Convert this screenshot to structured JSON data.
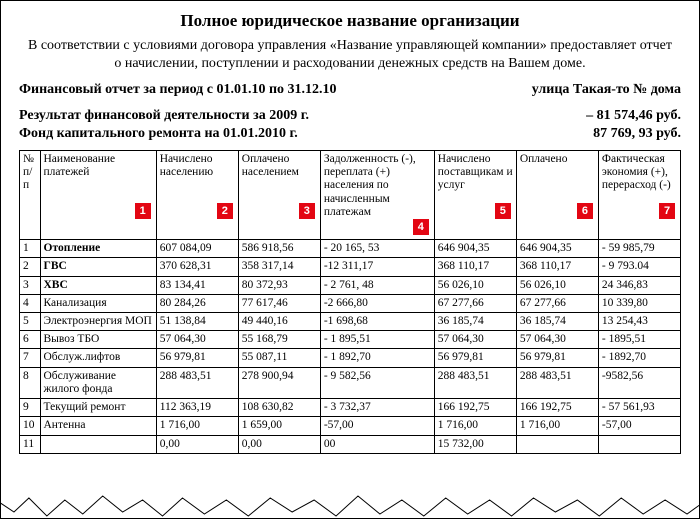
{
  "title": "Полное юридическое название организации",
  "intro": "В соответствии с условиями договора управления «Название управляющей компании» предоставляет отчет о начислении, поступлении и расходовании денежных средств на Вашем доме.",
  "period_line_left": "Финансовый отчет за период с 01.01.10 по 31.12.10",
  "period_line_right": "улица Такая-то № дома",
  "result_line_left": "Результат финансовой деятельности за 2009 г.",
  "result_line_right": "– 81 574,46 руб.",
  "fund_line_left": "Фонд капитального ремонта на 01.01.2010 г.",
  "fund_line_right": "87 769, 93 руб.",
  "badge_color": "#e30613",
  "columns": [
    {
      "label": "№ п/п",
      "badge": null
    },
    {
      "label": "Наименование платежей",
      "badge": "1"
    },
    {
      "label": "Начислено населению",
      "badge": "2"
    },
    {
      "label": "Оплачено населением",
      "badge": "3"
    },
    {
      "label": "Задолженность (-), переплата (+) населения по начисленным платежам",
      "badge": "4"
    },
    {
      "label": "Начислено поставщикам и услуг",
      "badge": "5"
    },
    {
      "label": "Оплачено",
      "badge": "6"
    },
    {
      "label": "Фактическая экономия (+), перерасход (-)",
      "badge": "7"
    }
  ],
  "rows": [
    {
      "n": "1",
      "name": "Отопление",
      "name_bold": true,
      "c2": "607 084,09",
      "c3": "586 918,56",
      "c4": "- 20 165, 53",
      "c5": "646 904,35",
      "c6": "646 904,35",
      "c7": "- 59 985,79"
    },
    {
      "n": "2",
      "name": "ГВС",
      "name_bold": true,
      "c2": "370 628,31",
      "c3": "358 317,14",
      "c4": "-12 311,17",
      "c5": "368 110,17",
      "c6": "368 110,17",
      "c7": "- 9 793.04"
    },
    {
      "n": "3",
      "name": "ХВС",
      "name_bold": true,
      "c2": "83 134,41",
      "c3": "80 372,93",
      "c4": "- 2 761, 48",
      "c5": "56 026,10",
      "c6": "56 026,10",
      "c7": "24 346,83"
    },
    {
      "n": "4",
      "name": "Канализация",
      "name_bold": false,
      "c2": "80 284,26",
      "c3": "77 617,46",
      "c4": "-2 666,80",
      "c5": "67 277,66",
      "c6": "67 277,66",
      "c7": "10 339,80"
    },
    {
      "n": "5",
      "name": "Электроэнергия МОП",
      "name_bold": false,
      "c2": "51 138,84",
      "c3": "49 440,16",
      "c4": "-1 698,68",
      "c5": "36 185,74",
      "c6": "36 185,74",
      "c7": "13 254,43"
    },
    {
      "n": "6",
      "name": "Вывоз ТБО",
      "name_bold": false,
      "c2": "57 064,30",
      "c3": "55 168,79",
      "c4": "- 1 895,51",
      "c5": "57 064,30",
      "c6": "57 064,30",
      "c7": "- 1895,51"
    },
    {
      "n": "7",
      "name": "Обслуж.лифтов",
      "name_bold": false,
      "c2": "56 979,81",
      "c3": "55 087,11",
      "c4": "- 1 892,70",
      "c5": "56 979,81",
      "c6": "56 979,81",
      "c7": "- 1892,70"
    },
    {
      "n": "8",
      "name": "Обслуживание жилого фонда",
      "name_bold": false,
      "c2": "288 483,51",
      "c3": "278 900,94",
      "c4": "- 9 582,56",
      "c5": "288 483,51",
      "c6": "288 483,51",
      "c7": "-9582,56"
    },
    {
      "n": "9",
      "name": "Текущий ремонт",
      "name_bold": false,
      "c2": "112 363,19",
      "c3": "108 630,82",
      "c4": "- 3 732,37",
      "c5": "166 192,75",
      "c6": "166 192,75",
      "c7": "- 57 561,93"
    },
    {
      "n": "10",
      "name": "Антенна",
      "name_bold": false,
      "c2": "1 716,00",
      "c3": "1 659,00",
      "c4": "-57,00",
      "c5": "1 716,00",
      "c6": "1 716,00",
      "c7": "-57,00"
    },
    {
      "n": "11",
      "name": "",
      "name_bold": false,
      "c2": "0,00",
      "c3": "0,00",
      "c4": "00",
      "c5": "15 732,00",
      "c6": "",
      "c7": ""
    }
  ]
}
